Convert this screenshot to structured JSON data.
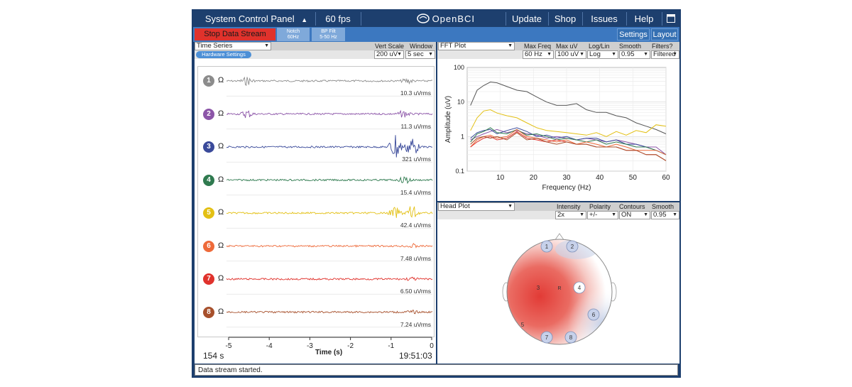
{
  "topbar": {
    "system_panel": "System Control Panel",
    "arrow": "▲",
    "fps": "60 fps",
    "logo": "OpenBCI",
    "update": "Update",
    "shop": "Shop",
    "issues": "Issues",
    "help": "Help",
    "window_icon": "window-icon"
  },
  "toolbar": {
    "stop_stream": "Stop Data Stream",
    "notch_line1": "Notch",
    "notch_line2": "60Hz",
    "bp_line1": "BP Filt",
    "bp_line2": "5-50 Hz",
    "settings": "Settings",
    "layout": "Layout",
    "colors": {
      "stop": "#e0322c",
      "bar": "#3c78c0",
      "top": "#1d3f6e"
    }
  },
  "time_series": {
    "widget": "Time Series",
    "vert_scale_label": "Vert Scale",
    "window_label": "Window",
    "hardware_settings": "Hardware Settings",
    "vert_scale_value": "200 uV",
    "window_value": "5 sec",
    "channels": [
      {
        "num": "1",
        "rms": "10.3 uVrms",
        "color": "#8c8c8c"
      },
      {
        "num": "2",
        "rms": "11.3 uVrms",
        "color": "#8c55a8"
      },
      {
        "num": "3",
        "rms": "321 uVrms",
        "color": "#3a4a9a"
      },
      {
        "num": "4",
        "rms": "15.4 uVrms",
        "color": "#2f7a4f"
      },
      {
        "num": "5",
        "rms": "42.4 uVrms",
        "color": "#e3c014"
      },
      {
        "num": "6",
        "rms": "7.48 uVrms",
        "color": "#ee6a3a"
      },
      {
        "num": "7",
        "rms": "6.50 uVrms",
        "color": "#e0322c"
      },
      {
        "num": "8",
        "rms": "7.24 uVrms",
        "color": "#a7502c"
      }
    ],
    "x_ticks": [
      "-5",
      "-4",
      "-3",
      "-2",
      "-1",
      "0"
    ],
    "xlabel": "Time (s)",
    "elapsed": "154 s",
    "clock": "19:51:03"
  },
  "fft": {
    "widget": "FFT Plot",
    "max_freq_label": "Max Freq",
    "max_uv_label": "Max uV",
    "loglin_label": "Log/Lin",
    "smooth_label": "Smooth",
    "filters_label": "Filters?",
    "max_freq_value": "60 Hz",
    "max_uv_value": "100 uV",
    "loglin_value": "Log",
    "smooth_value": "0.95",
    "filters_value": "Filtered"
  },
  "head_plot": {
    "widget": "Head Plot",
    "intensity_label": "Intensity",
    "polarity_label": "Polarity",
    "contours_label": "Contours",
    "smooth_label": "Smooth",
    "intensity_value": "2x",
    "polarity_value": "+/-",
    "contours_value": "ON",
    "smooth_value": "0.95",
    "electrodes": [
      "1",
      "2",
      "3",
      "4",
      "5",
      "6",
      "7",
      "8"
    ],
    "ref_label": "R"
  },
  "chart_data": {
    "type": "line",
    "title": "",
    "xlabel": "Frequency (Hz)",
    "ylabel": "Amplitude (uV)",
    "x_ticks": [
      "10",
      "20",
      "30",
      "40",
      "50",
      "60"
    ],
    "y_ticks": [
      "0.1",
      "1",
      "10",
      "100"
    ],
    "xlim": [
      0,
      60
    ],
    "ylim": [
      0.1,
      100
    ],
    "y_scale": "log",
    "x": [
      1,
      3,
      5,
      7,
      9,
      12,
      15,
      18,
      21,
      24,
      27,
      30,
      33,
      36,
      39,
      42,
      45,
      48,
      51,
      54,
      57,
      60
    ],
    "series": [
      {
        "color": "#555555",
        "values": [
          8,
          22,
          30,
          38,
          36,
          28,
          22,
          20,
          14,
          10,
          8,
          8,
          9,
          6,
          5,
          5,
          4,
          3.5,
          2.5,
          2,
          1.6,
          1.2
        ]
      },
      {
        "color": "#8c55a8",
        "values": [
          0.8,
          1.0,
          1.2,
          1.4,
          1.6,
          1.3,
          1.5,
          1.2,
          1.1,
          0.9,
          1.0,
          0.9,
          0.8,
          0.9,
          0.8,
          0.7,
          0.8,
          0.7,
          0.6,
          0.5,
          0.5,
          0.3
        ]
      },
      {
        "color": "#3a4a9a",
        "values": [
          0.9,
          1.3,
          1.5,
          1.6,
          1.2,
          1.5,
          1.8,
          1.4,
          1.0,
          1.1,
          0.9,
          1.0,
          0.8,
          0.9,
          0.9,
          0.7,
          0.8,
          0.6,
          0.6,
          0.5,
          0.4,
          0.3
        ]
      },
      {
        "color": "#2f7a4f",
        "values": [
          0.7,
          1.2,
          1.4,
          1.8,
          1.3,
          1.2,
          1.6,
          1.1,
          1.2,
          1.0,
          0.8,
          0.9,
          0.8,
          0.7,
          0.8,
          0.6,
          0.7,
          0.6,
          0.5,
          0.5,
          0.4,
          0.3
        ]
      },
      {
        "color": "#e3c014",
        "values": [
          1.5,
          3.5,
          5.5,
          6.0,
          4.8,
          4.0,
          3.5,
          2.5,
          1.8,
          1.5,
          1.4,
          1.3,
          1.2,
          1.1,
          1.3,
          1.0,
          1.4,
          1.1,
          1.5,
          1.3,
          2.2,
          2.0
        ]
      },
      {
        "color": "#ee6a3a",
        "values": [
          0.5,
          0.8,
          1.0,
          1.1,
          0.9,
          1.0,
          1.6,
          1.0,
          0.9,
          0.8,
          0.7,
          0.8,
          0.6,
          0.7,
          0.6,
          0.5,
          0.6,
          0.5,
          0.4,
          0.4,
          0.4,
          0.3
        ]
      },
      {
        "color": "#e0322c",
        "values": [
          0.5,
          0.7,
          0.9,
          1.0,
          0.8,
          0.9,
          1.4,
          0.9,
          0.8,
          0.7,
          0.8,
          0.7,
          0.6,
          0.6,
          0.5,
          0.5,
          0.5,
          0.4,
          0.4,
          0.3,
          0.3,
          0.2
        ]
      },
      {
        "color": "#a7502c",
        "values": [
          0.6,
          0.9,
          1.0,
          0.9,
          1.0,
          0.8,
          1.3,
          0.8,
          0.9,
          0.7,
          0.6,
          0.7,
          0.6,
          0.6,
          0.5,
          0.5,
          0.5,
          0.4,
          0.4,
          0.3,
          0.3,
          0.2
        ]
      }
    ]
  },
  "status": {
    "message": "Data stream started."
  }
}
